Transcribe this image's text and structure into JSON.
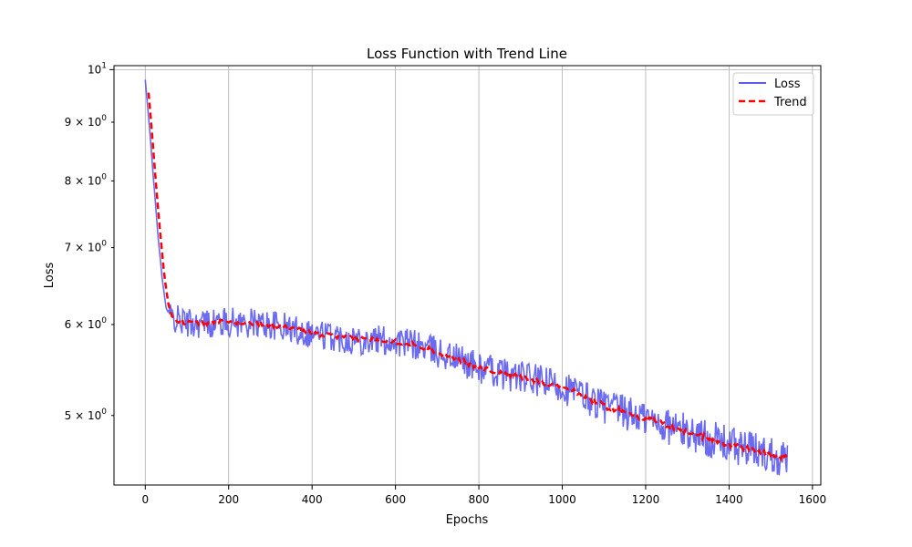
{
  "chart_data": {
    "type": "line",
    "title": "Loss Function with Trend Line",
    "xlabel": "Epochs",
    "ylabel": "Loss",
    "xlim": [
      -75,
      1620
    ],
    "ylim": [
      4.35,
      10.08
    ],
    "yscale": "log",
    "grid": "x-major and y-decade",
    "legend_position": "top-right",
    "x_ticks": [
      0,
      200,
      400,
      600,
      800,
      1000,
      1200,
      1400,
      1600
    ],
    "x_tick_labels": [
      "0",
      "200",
      "400",
      "600",
      "800",
      "1000",
      "1200",
      "1400",
      "1600"
    ],
    "y_ticks": [
      {
        "value": 10,
        "base": "10",
        "exp": "1"
      },
      {
        "value": 9,
        "base": "9 × 10",
        "exp": "0"
      },
      {
        "value": 8,
        "base": "8 × 10",
        "exp": "0"
      },
      {
        "value": 7,
        "base": "7 × 10",
        "exp": "0"
      },
      {
        "value": 6,
        "base": "6 × 10",
        "exp": "0"
      },
      {
        "value": 5,
        "base": "5 × 10",
        "exp": "0"
      }
    ],
    "series": [
      {
        "name": "Loss",
        "color": "#5b5bf0",
        "style": "solid",
        "x": [
          0,
          10,
          20,
          30,
          40,
          50,
          60,
          80,
          100,
          150,
          200,
          250,
          300,
          350,
          400,
          450,
          500,
          550,
          600,
          650,
          700,
          750,
          800,
          850,
          900,
          950,
          1000,
          1050,
          1100,
          1150,
          1200,
          1250,
          1300,
          1350,
          1400,
          1450,
          1500,
          1540
        ],
        "y": [
          9.8,
          8.9,
          8.0,
          7.2,
          6.6,
          6.2,
          6.1,
          6.05,
          6.02,
          6.02,
          6.03,
          6.02,
          6.0,
          5.95,
          5.9,
          5.86,
          5.83,
          5.82,
          5.8,
          5.76,
          5.68,
          5.6,
          5.5,
          5.45,
          5.4,
          5.35,
          5.3,
          5.2,
          5.1,
          5.03,
          4.97,
          4.9,
          4.84,
          4.78,
          4.72,
          4.67,
          4.63,
          4.6
        ],
        "noise_amplitude": 0.18
      },
      {
        "name": "Trend",
        "color": "#ff0000",
        "style": "dashed",
        "x": [
          8,
          15,
          25,
          35,
          45,
          55,
          65,
          80,
          100,
          150,
          200,
          250,
          300,
          350,
          400,
          450,
          500,
          550,
          600,
          650,
          700,
          750,
          800,
          850,
          900,
          950,
          1000,
          1050,
          1100,
          1150,
          1200,
          1250,
          1300,
          1350,
          1400,
          1450,
          1500,
          1540
        ],
        "y": [
          9.55,
          8.9,
          8.0,
          7.25,
          6.65,
          6.25,
          6.1,
          6.05,
          6.02,
          6.02,
          6.03,
          6.02,
          6.0,
          5.95,
          5.9,
          5.86,
          5.83,
          5.82,
          5.8,
          5.76,
          5.68,
          5.6,
          5.5,
          5.45,
          5.4,
          5.35,
          5.3,
          5.2,
          5.1,
          5.03,
          4.97,
          4.9,
          4.84,
          4.78,
          4.72,
          4.67,
          4.63,
          4.6
        ]
      }
    ]
  }
}
